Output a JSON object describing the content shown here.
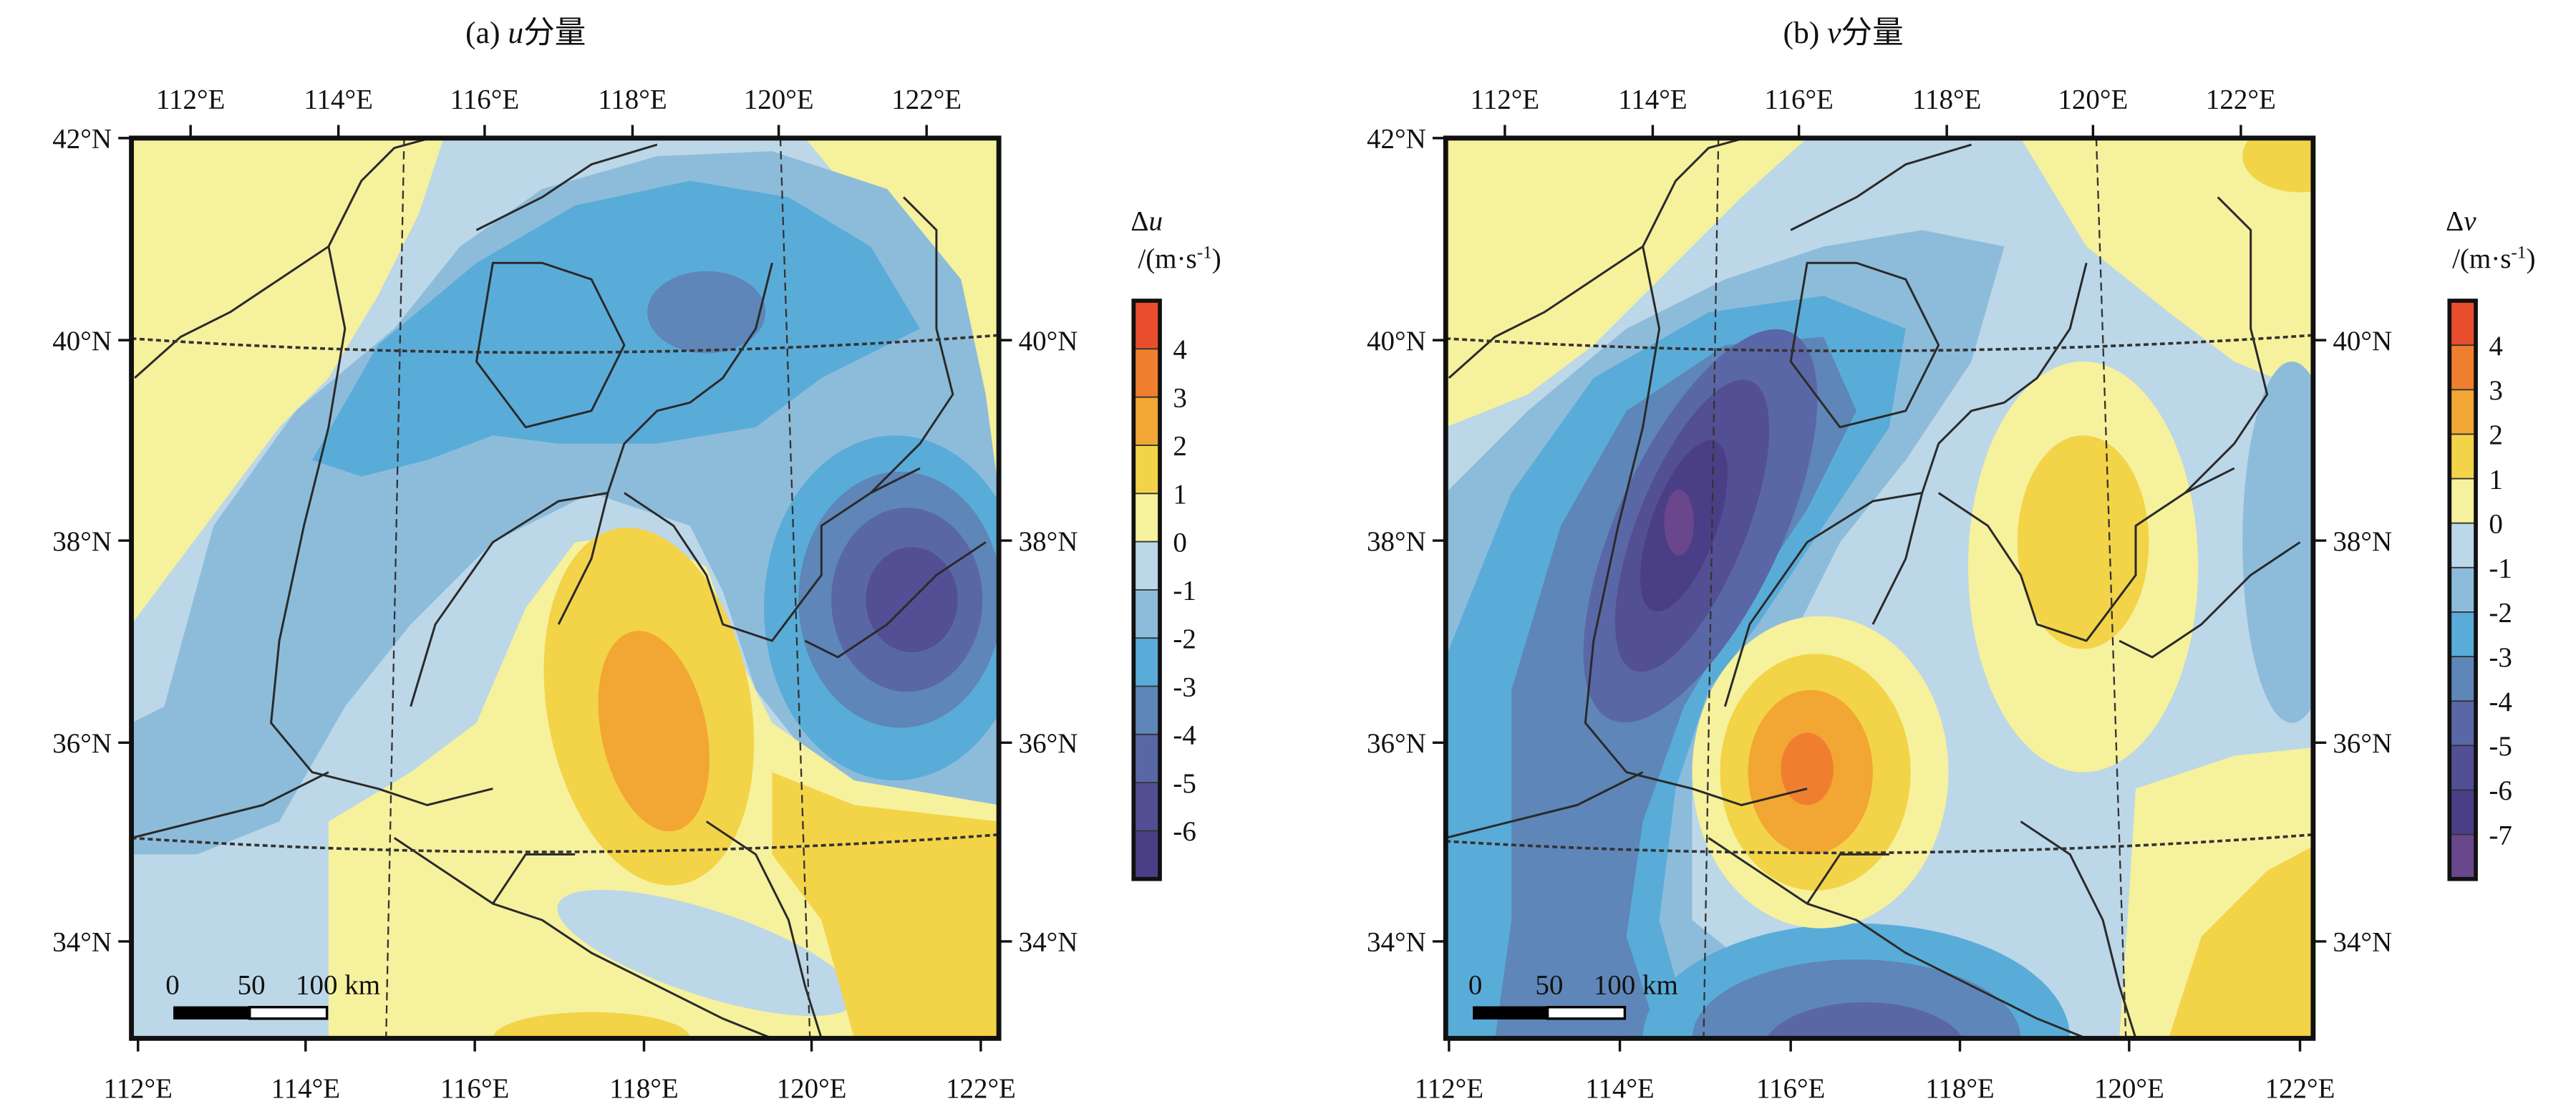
{
  "colors": {
    "lvl_4p": "#e84e2e",
    "lvl_3_4": "#ef7f2e",
    "lvl_2_3": "#f2a633",
    "lvl_1_2": "#f3d348",
    "lvl_0_1": "#f6f19c",
    "lvl_m1_0": "#bcd7e8",
    "lvl_m2_m1": "#8dbcdb",
    "lvl_m3_m2": "#5aacd8",
    "lvl_m4_m3": "#5f86b8",
    "lvl_m5_m4": "#5a67a6",
    "lvl_m6_m5": "#534f94",
    "lvl_m7_m6": "#4a3f86",
    "lvl_below_m7": "#6a468c"
  },
  "chart_data": {
    "type": "heatmap",
    "description_type": "filled contour map",
    "panels": [
      {
        "title_prefix": "(a) ",
        "var": "u",
        "title_suffix": "分量",
        "lon_ticks_top": [
          "112°E",
          "114°E",
          "116°E",
          "118°E",
          "120°E",
          "122°E"
        ],
        "lon_ticks_bottom": [
          "112°E",
          "114°E",
          "116°E",
          "118°E",
          "120°E",
          "122°E"
        ],
        "lat_ticks_left": [
          "42°N",
          "40°N",
          "38°N",
          "36°N",
          "34°N"
        ],
        "lat_ticks_right": [
          "40°N",
          "38°N",
          "36°N",
          "34°N"
        ],
        "colorbar_symbol": "Δ",
        "colorbar_var": "u",
        "colorbar_unit": "/(m·s",
        "colorbar_unit_sup": "-1",
        "colorbar_unit_end": ")",
        "colorbar_levels": [
          "4",
          "3",
          "2",
          "1",
          "0",
          "-1",
          "-2",
          "-3",
          "-4",
          "-5",
          "-6"
        ],
        "scale_bar": {
          "labels": [
            "0",
            "50",
            "100 km"
          ]
        },
        "lon_range": [
          112,
          122
        ],
        "lat_range": [
          33,
          42
        ],
        "features": [
          {
            "type": "min",
            "lon": 121.2,
            "lat": 37.3,
            "value_range": "-6 to -5"
          },
          {
            "type": "max",
            "lon": 117.8,
            "lat": 36.2,
            "value_range": "2 to 3"
          }
        ]
      },
      {
        "title_prefix": "(b) ",
        "var": "v",
        "title_suffix": "分量",
        "lon_ticks_top": [
          "112°E",
          "114°E",
          "116°E",
          "118°E",
          "120°E",
          "122°E"
        ],
        "lon_ticks_bottom": [
          "112°E",
          "114°E",
          "116°E",
          "118°E",
          "120°E",
          "122°E"
        ],
        "lat_ticks_left": [
          "42°N",
          "40°N",
          "38°N",
          "36°N",
          "34°N"
        ],
        "lat_ticks_right": [
          "40°N",
          "38°N",
          "36°N",
          "34°N"
        ],
        "colorbar_symbol": "Δ",
        "colorbar_var": "v",
        "colorbar_unit": "/(m·s",
        "colorbar_unit_sup": "-1",
        "colorbar_unit_end": ")",
        "colorbar_levels": [
          "4",
          "3",
          "2",
          "1",
          "0",
          "-1",
          "-2",
          "-3",
          "-4",
          "-5",
          "-6",
          "-7"
        ],
        "scale_bar": {
          "labels": [
            "0",
            "50",
            "100 km"
          ]
        },
        "lon_range": [
          112,
          122
        ],
        "lat_range": [
          33,
          42
        ],
        "features": [
          {
            "type": "min",
            "lon": 114.6,
            "lat": 38.0,
            "value_range": "below -7"
          },
          {
            "type": "max",
            "lon": 116.2,
            "lat": 35.6,
            "value_range": "3 to 4"
          },
          {
            "type": "max",
            "lon": 119.6,
            "lat": 38.0,
            "value_range": "1 to 2"
          }
        ]
      }
    ]
  }
}
